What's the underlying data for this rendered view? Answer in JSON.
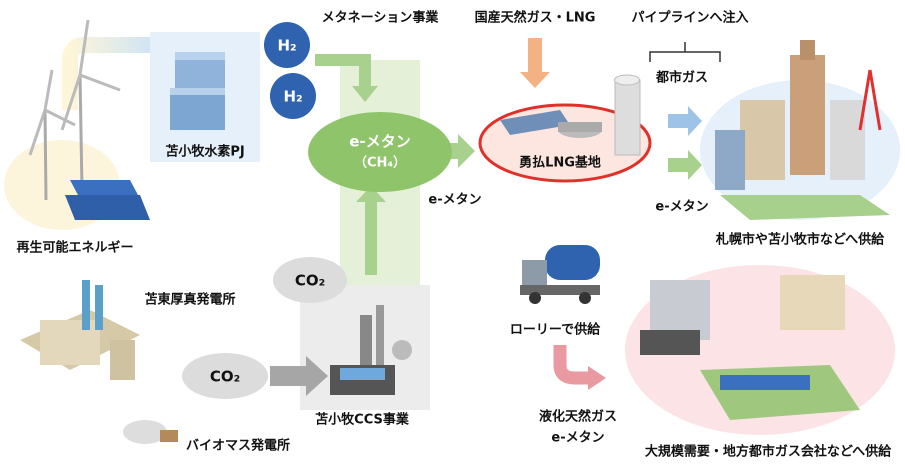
{
  "nodes": [
    {
      "label": "メタネーション事業"
    },
    {
      "label": "国産天然ガス・LNG"
    },
    {
      "label": "パイプラインへ注入"
    },
    {
      "label": "都市ガス"
    },
    {
      "label": "H₂"
    },
    {
      "label": "H₂"
    },
    {
      "label": "苫小牧水素PJ"
    },
    {
      "lines": [
        "e-メタン",
        "（CH₄）"
      ]
    },
    {
      "label": "e-メタン"
    },
    {
      "label": "勇払LNG基地"
    },
    {
      "label": "e-メタン"
    },
    {
      "label": "札幌市や苫小牧市などへ供給"
    },
    {
      "label": "再生可能エネルギー"
    },
    {
      "label": "CO₂"
    },
    {
      "label": "苫東厚真発電所"
    },
    {
      "label": "CO₂"
    },
    {
      "label": "ローリーで供給"
    },
    {
      "label": "苫小牧CCS事業"
    },
    {
      "label": "バイオマス発電所"
    },
    {
      "lines": [
        "液化天然ガス",
        "e-メタン"
      ]
    },
    {
      "label": "大規模需要・地方都市ガス会社などへ供給"
    }
  ]
}
